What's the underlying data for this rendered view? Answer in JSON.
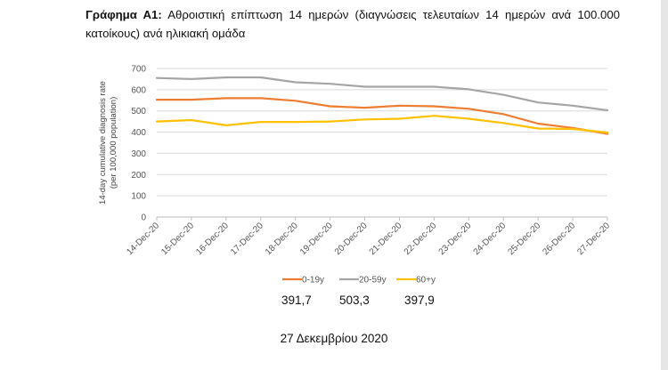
{
  "caption": {
    "prefix": "Γράφημα Α1:",
    "text": "Αθροιστική επίπτωση 14 ημερών (διαγνώσεις τελευταίων 14 ημερών ανά 100.000 κατοίκους) ανά ηλικιακή ομάδα"
  },
  "chart_data": {
    "type": "line",
    "title": "",
    "xlabel": "",
    "ylabel": [
      "14-day cumulative diagnosis rate",
      "(per 100,000 population)"
    ],
    "categories": [
      "14-Dec-20",
      "15-Dec-20",
      "16-Dec-20",
      "17-Dec-20",
      "18-Dec-20",
      "19-Dec-20",
      "20-Dec-20",
      "21-Dec-20",
      "22-Dec-20",
      "23-Dec-20",
      "24-Dec-20",
      "25-Dec-20",
      "26-Dec-20",
      "27-Dec-20"
    ],
    "ylim": [
      0,
      700
    ],
    "yticks": [
      0,
      100,
      200,
      300,
      400,
      500,
      600,
      700
    ],
    "grid": true,
    "legend_position": "bottom",
    "series": [
      {
        "name": "0-19y",
        "color": "#ED7D31",
        "values": [
          553,
          553,
          560,
          560,
          548,
          522,
          515,
          525,
          522,
          510,
          485,
          440,
          420,
          392
        ]
      },
      {
        "name": "20-59y",
        "color": "#A5A5A5",
        "values": [
          655,
          650,
          658,
          658,
          635,
          628,
          614,
          614,
          614,
          602,
          576,
          540,
          525,
          503
        ]
      },
      {
        "name": "60+y",
        "color": "#FFC000",
        "values": [
          450,
          457,
          432,
          448,
          448,
          450,
          460,
          463,
          477,
          463,
          443,
          417,
          415,
          398
        ]
      }
    ]
  },
  "latest_values": [
    "391,7",
    "503,3",
    "397,9"
  ],
  "report_date": "27 Δεκεμβρίου 2020"
}
